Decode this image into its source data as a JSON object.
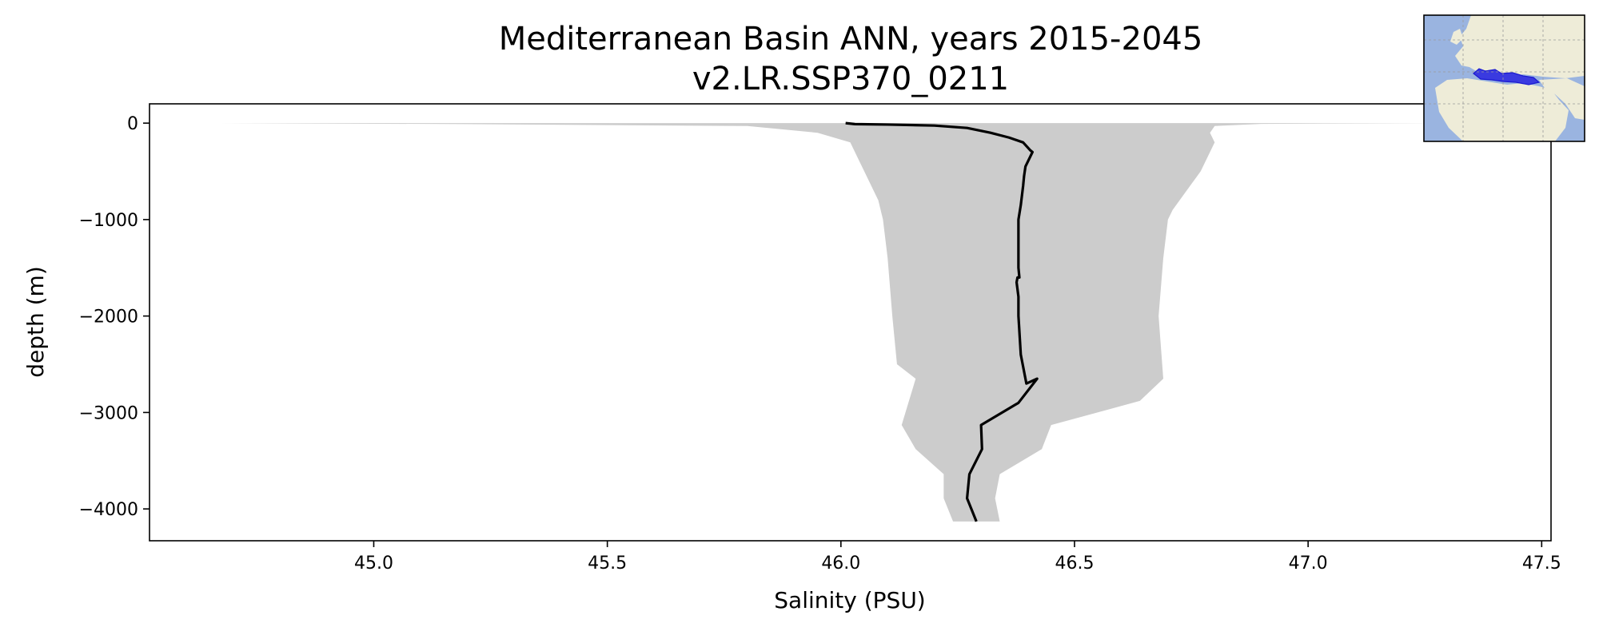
{
  "chart_data": {
    "type": "line",
    "title": [
      "Mediterranean Basin ANN, years 2015-2045",
      "v2.LR.SSP370_0211"
    ],
    "xlabel": "Salinity (PSU)",
    "ylabel": "depth (m)",
    "xlim": [
      44.52,
      47.52
    ],
    "ylim": [
      -4330,
      200
    ],
    "xticks": [
      45.0,
      45.5,
      46.0,
      46.5,
      47.0,
      47.5
    ],
    "xtick_labels": [
      "45.0",
      "45.5",
      "46.0",
      "46.5",
      "47.0",
      "47.5"
    ],
    "yticks": [
      0,
      -1000,
      -2000,
      -3000,
      -4000
    ],
    "ytick_labels": [
      "0",
      "−1000",
      "−2000",
      "−3000",
      "−4000"
    ],
    "grid": false,
    "series": [
      {
        "name": "mean",
        "color": "#000000",
        "points": [
          [
            46.01,
            0
          ],
          [
            46.03,
            -10
          ],
          [
            46.1,
            -15
          ],
          [
            46.2,
            -25
          ],
          [
            46.27,
            -50
          ],
          [
            46.32,
            -100
          ],
          [
            46.36,
            -150
          ],
          [
            46.39,
            -200
          ],
          [
            46.405,
            -280
          ],
          [
            46.41,
            -300
          ],
          [
            46.405,
            -350
          ],
          [
            46.395,
            -450
          ],
          [
            46.392,
            -550
          ],
          [
            46.39,
            -650
          ],
          [
            46.385,
            -850
          ],
          [
            46.38,
            -1000
          ],
          [
            46.38,
            -1500
          ],
          [
            46.382,
            -1600
          ],
          [
            46.378,
            -1600
          ],
          [
            46.376,
            -1650
          ],
          [
            46.38,
            -1800
          ],
          [
            46.38,
            -2000
          ],
          [
            46.385,
            -2400
          ],
          [
            46.397,
            -2700
          ],
          [
            46.42,
            -2650
          ],
          [
            46.38,
            -2900
          ],
          [
            46.3,
            -3130
          ],
          [
            46.302,
            -3380
          ],
          [
            46.275,
            -3640
          ],
          [
            46.27,
            -3890
          ],
          [
            46.29,
            -4130
          ]
        ]
      }
    ],
    "range": {
      "name": "min-max range",
      "color": "#cccccc",
      "min": [
        [
          44.67,
          0
        ],
        [
          45.2,
          -10
        ],
        [
          45.8,
          -30
        ],
        [
          45.95,
          -100
        ],
        [
          46.02,
          -200
        ],
        [
          46.03,
          -300
        ],
        [
          46.04,
          -400
        ],
        [
          46.05,
          -500
        ],
        [
          46.06,
          -600
        ],
        [
          46.08,
          -800
        ],
        [
          46.09,
          -1000
        ],
        [
          46.1,
          -1400
        ],
        [
          46.11,
          -2000
        ],
        [
          46.12,
          -2500
        ],
        [
          46.16,
          -2650
        ],
        [
          46.13,
          -3130
        ],
        [
          46.16,
          -3380
        ],
        [
          46.22,
          -3640
        ],
        [
          46.22,
          -3890
        ],
        [
          46.24,
          -4130
        ]
      ],
      "max": [
        [
          47.26,
          0
        ],
        [
          46.9,
          -8
        ],
        [
          46.8,
          -30
        ],
        [
          46.79,
          -100
        ],
        [
          46.8,
          -200
        ],
        [
          46.79,
          -300
        ],
        [
          46.77,
          -500
        ],
        [
          46.74,
          -700
        ],
        [
          46.71,
          -900
        ],
        [
          46.7,
          -1000
        ],
        [
          46.69,
          -1400
        ],
        [
          46.68,
          -2000
        ],
        [
          46.69,
          -2650
        ],
        [
          46.64,
          -2880
        ],
        [
          46.45,
          -3130
        ],
        [
          46.43,
          -3380
        ],
        [
          46.34,
          -3640
        ],
        [
          46.33,
          -3890
        ],
        [
          46.34,
          -4130
        ]
      ]
    },
    "inset_map": {
      "region": "Mediterranean Basin",
      "ocean_color": "#9ab4e0",
      "land_color": "#eeecd8",
      "region_color": "#3a3ae0"
    }
  }
}
